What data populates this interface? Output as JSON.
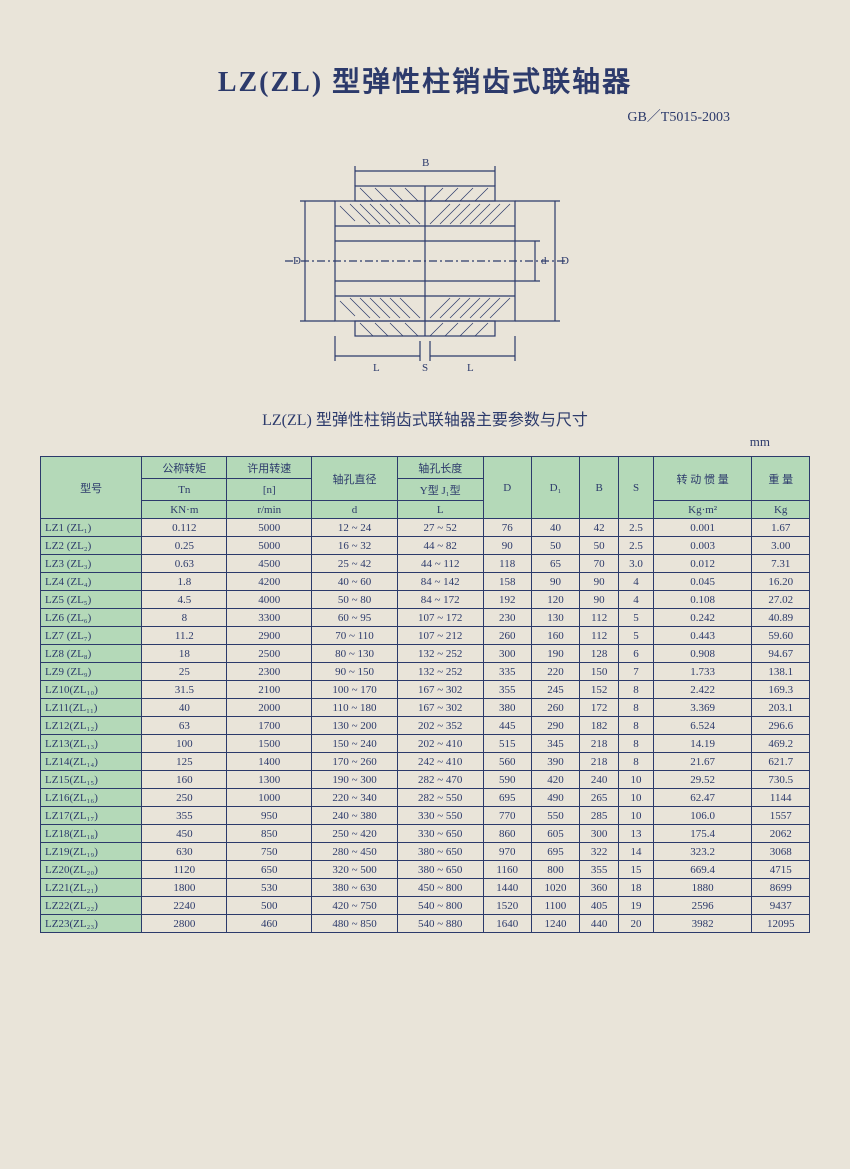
{
  "title": "LZ(ZL) 型弹性柱销齿式联轴器",
  "standard": "GB／T5015-2003",
  "subtitle": "LZ(ZL) 型弹性柱销齿式联轴器主要参数与尺寸",
  "unit": "mm",
  "diagram": {
    "labels": {
      "B_top": "B",
      "D_left": "D",
      "d_right": "d",
      "D_right": "D",
      "L_bottom": "L",
      "S_bottom": "S",
      "L_bottom2": "L"
    },
    "outline_color": "#2c3a6b",
    "hatch_color": "#2c3a6b",
    "bg_color": "#e9e4d9"
  },
  "table": {
    "header_bg": "#b4d9b8",
    "border_color": "#2c3a6b",
    "text_color": "#2c3a6b",
    "cols": {
      "model": "型号",
      "torque": "公称转矩",
      "torque_sym": "Tn",
      "torque_unit": "KN·m",
      "speed": "许用转速",
      "speed_sym": "[n]",
      "speed_unit": "r/min",
      "bore": "轴孔直径",
      "bore_sym": "d",
      "bore_len": "轴孔长度",
      "bore_type": "Y型  J₁型",
      "bore_L": "L",
      "D": "D",
      "D1": "D₁",
      "B": "B",
      "S": "S",
      "inertia": "转 动 惯 量",
      "inertia_unit": "Kg·m²",
      "weight": "重 量",
      "weight_unit": "Kg"
    },
    "rows": [
      {
        "m": "LZ1 (ZL₁)",
        "tn": "0.112",
        "n": "5000",
        "d": "12 ~ 24",
        "l": "27 ~ 52",
        "D": "76",
        "D1": "40",
        "B": "42",
        "S": "2.5",
        "I": "0.001",
        "W": "1.67"
      },
      {
        "m": "LZ2 (ZL₂)",
        "tn": "0.25",
        "n": "5000",
        "d": "16 ~ 32",
        "l": "44 ~ 82",
        "D": "90",
        "D1": "50",
        "B": "50",
        "S": "2.5",
        "I": "0.003",
        "W": "3.00"
      },
      {
        "m": "LZ3 (ZL₃)",
        "tn": "0.63",
        "n": "4500",
        "d": "25 ~ 42",
        "l": "44 ~ 112",
        "D": "118",
        "D1": "65",
        "B": "70",
        "S": "3.0",
        "I": "0.012",
        "W": "7.31"
      },
      {
        "m": "LZ4 (ZL₄)",
        "tn": "1.8",
        "n": "4200",
        "d": "40 ~ 60",
        "l": "84 ~ 142",
        "D": "158",
        "D1": "90",
        "B": "90",
        "S": "4",
        "I": "0.045",
        "W": "16.20"
      },
      {
        "m": "LZ5 (ZL₅)",
        "tn": "4.5",
        "n": "4000",
        "d": "50 ~ 80",
        "l": "84 ~ 172",
        "D": "192",
        "D1": "120",
        "B": "90",
        "S": "4",
        "I": "0.108",
        "W": "27.02"
      },
      {
        "m": "LZ6 (ZL₆)",
        "tn": "8",
        "n": "3300",
        "d": "60 ~ 95",
        "l": "107 ~ 172",
        "D": "230",
        "D1": "130",
        "B": "112",
        "S": "5",
        "I": "0.242",
        "W": "40.89"
      },
      {
        "m": "LZ7 (ZL₇)",
        "tn": "11.2",
        "n": "2900",
        "d": "70 ~ 110",
        "l": "107 ~ 212",
        "D": "260",
        "D1": "160",
        "B": "112",
        "S": "5",
        "I": "0.443",
        "W": "59.60"
      },
      {
        "m": "LZ8 (ZL₈)",
        "tn": "18",
        "n": "2500",
        "d": "80 ~ 130",
        "l": "132 ~ 252",
        "D": "300",
        "D1": "190",
        "B": "128",
        "S": "6",
        "I": "0.908",
        "W": "94.67"
      },
      {
        "m": "LZ9 (ZL₉)",
        "tn": "25",
        "n": "2300",
        "d": "90 ~ 150",
        "l": "132 ~ 252",
        "D": "335",
        "D1": "220",
        "B": "150",
        "S": "7",
        "I": "1.733",
        "W": "138.1"
      },
      {
        "m": "LZ10(ZL₁₀)",
        "tn": "31.5",
        "n": "2100",
        "d": "100 ~ 170",
        "l": "167 ~ 302",
        "D": "355",
        "D1": "245",
        "B": "152",
        "S": "8",
        "I": "2.422",
        "W": "169.3"
      },
      {
        "m": "LZ11(ZL₁₁)",
        "tn": "40",
        "n": "2000",
        "d": "110 ~ 180",
        "l": "167 ~ 302",
        "D": "380",
        "D1": "260",
        "B": "172",
        "S": "8",
        "I": "3.369",
        "W": "203.1"
      },
      {
        "m": "LZ12(ZL₁₂)",
        "tn": "63",
        "n": "1700",
        "d": "130 ~ 200",
        "l": "202 ~ 352",
        "D": "445",
        "D1": "290",
        "B": "182",
        "S": "8",
        "I": "6.524",
        "W": "296.6"
      },
      {
        "m": "LZ13(ZL₁₃)",
        "tn": "100",
        "n": "1500",
        "d": "150 ~ 240",
        "l": "202 ~ 410",
        "D": "515",
        "D1": "345",
        "B": "218",
        "S": "8",
        "I": "14.19",
        "W": "469.2"
      },
      {
        "m": "LZ14(ZL₁₄)",
        "tn": "125",
        "n": "1400",
        "d": "170 ~ 260",
        "l": "242 ~ 410",
        "D": "560",
        "D1": "390",
        "B": "218",
        "S": "8",
        "I": "21.67",
        "W": "621.7"
      },
      {
        "m": "LZ15(ZL₁₅)",
        "tn": "160",
        "n": "1300",
        "d": "190 ~ 300",
        "l": "282 ~ 470",
        "D": "590",
        "D1": "420",
        "B": "240",
        "S": "10",
        "I": "29.52",
        "W": "730.5"
      },
      {
        "m": "LZ16(ZL₁₆)",
        "tn": "250",
        "n": "1000",
        "d": "220 ~ 340",
        "l": "282 ~ 550",
        "D": "695",
        "D1": "490",
        "B": "265",
        "S": "10",
        "I": "62.47",
        "W": "1144"
      },
      {
        "m": "LZ17(ZL₁₇)",
        "tn": "355",
        "n": "950",
        "d": "240 ~ 380",
        "l": "330 ~ 550",
        "D": "770",
        "D1": "550",
        "B": "285",
        "S": "10",
        "I": "106.0",
        "W": "1557"
      },
      {
        "m": "LZ18(ZL₁₈)",
        "tn": "450",
        "n": "850",
        "d": "250 ~ 420",
        "l": "330 ~ 650",
        "D": "860",
        "D1": "605",
        "B": "300",
        "S": "13",
        "I": "175.4",
        "W": "2062"
      },
      {
        "m": "LZ19(ZL₁₉)",
        "tn": "630",
        "n": "750",
        "d": "280 ~ 450",
        "l": "380 ~ 650",
        "D": "970",
        "D1": "695",
        "B": "322",
        "S": "14",
        "I": "323.2",
        "W": "3068"
      },
      {
        "m": "LZ20(ZL₂₀)",
        "tn": "1120",
        "n": "650",
        "d": "320 ~ 500",
        "l": "380 ~ 650",
        "D": "1160",
        "D1": "800",
        "B": "355",
        "S": "15",
        "I": "669.4",
        "W": "4715"
      },
      {
        "m": "LZ21(ZL₂₁)",
        "tn": "1800",
        "n": "530",
        "d": "380 ~ 630",
        "l": "450 ~ 800",
        "D": "1440",
        "D1": "1020",
        "B": "360",
        "S": "18",
        "I": "1880",
        "W": "8699"
      },
      {
        "m": "LZ22(ZL₂₂)",
        "tn": "2240",
        "n": "500",
        "d": "420 ~ 750",
        "l": "540 ~ 800",
        "D": "1520",
        "D1": "1100",
        "B": "405",
        "S": "19",
        "I": "2596",
        "W": "9437"
      },
      {
        "m": "LZ23(ZL₂₃)",
        "tn": "2800",
        "n": "460",
        "d": "480 ~ 850",
        "l": "540 ~ 880",
        "D": "1640",
        "D1": "1240",
        "B": "440",
        "S": "20",
        "I": "3982",
        "W": "12095"
      }
    ]
  }
}
